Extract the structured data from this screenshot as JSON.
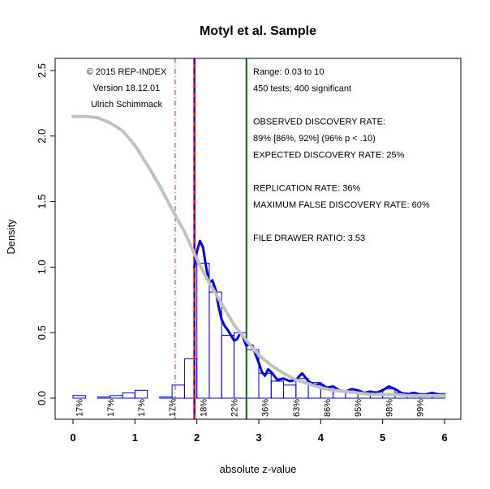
{
  "chart_data": {
    "type": "bar",
    "title": "Motyl et al. Sample",
    "xlabel": "absolute z-value",
    "ylabel": "Density",
    "xlim": [
      0,
      6
    ],
    "ylim": [
      0,
      2.6
    ],
    "x_ticks": [
      "0",
      "1",
      "2",
      "3",
      "4",
      "5",
      "6"
    ],
    "y_ticks": [
      "0.0",
      "0.5",
      "1.0",
      "1.5",
      "2.0",
      "2.5"
    ],
    "grid": false,
    "bin_width": 0.2,
    "histogram": [
      {
        "x0": 0.0,
        "x1": 0.2,
        "density": 0.02
      },
      {
        "x0": 0.2,
        "x1": 0.4,
        "density": 0.0
      },
      {
        "x0": 0.4,
        "x1": 0.6,
        "density": 0.01
      },
      {
        "x0": 0.6,
        "x1": 0.8,
        "density": 0.02
      },
      {
        "x0": 0.8,
        "x1": 1.0,
        "density": 0.04
      },
      {
        "x0": 1.0,
        "x1": 1.2,
        "density": 0.06
      },
      {
        "x0": 1.2,
        "x1": 1.4,
        "density": 0.0
      },
      {
        "x0": 1.4,
        "x1": 1.6,
        "density": 0.01
      },
      {
        "x0": 1.6,
        "x1": 1.8,
        "density": 0.1
      },
      {
        "x0": 1.8,
        "x1": 2.0,
        "density": 0.3
      },
      {
        "x0": 2.0,
        "x1": 2.2,
        "density": 1.03
      },
      {
        "x0": 2.2,
        "x1": 2.4,
        "density": 0.81
      },
      {
        "x0": 2.4,
        "x1": 2.6,
        "density": 0.48
      },
      {
        "x0": 2.6,
        "x1": 2.8,
        "density": 0.5
      },
      {
        "x0": 2.8,
        "x1": 3.0,
        "density": 0.37
      },
      {
        "x0": 3.0,
        "x1": 3.2,
        "density": 0.19
      },
      {
        "x0": 3.2,
        "x1": 3.4,
        "density": 0.13
      },
      {
        "x0": 3.4,
        "x1": 3.6,
        "density": 0.1
      },
      {
        "x0": 3.6,
        "x1": 3.8,
        "density": 0.15
      },
      {
        "x0": 3.8,
        "x1": 4.0,
        "density": 0.12
      },
      {
        "x0": 4.0,
        "x1": 4.2,
        "density": 0.07
      },
      {
        "x0": 4.2,
        "x1": 4.4,
        "density": 0.05
      },
      {
        "x0": 4.4,
        "x1": 4.6,
        "density": 0.04
      },
      {
        "x0": 4.6,
        "x1": 4.8,
        "density": 0.03
      },
      {
        "x0": 4.8,
        "x1": 5.0,
        "density": 0.05
      },
      {
        "x0": 5.0,
        "x1": 5.2,
        "density": 0.07
      },
      {
        "x0": 5.2,
        "x1": 5.4,
        "density": 0.04
      },
      {
        "x0": 5.4,
        "x1": 5.6,
        "density": 0.02
      },
      {
        "x0": 5.6,
        "x1": 5.8,
        "density": 0.02
      },
      {
        "x0": 5.8,
        "x1": 6.0,
        "density": 0.02
      }
    ],
    "series": [
      {
        "kind": "observed-density",
        "color": "#0000ee",
        "x": [
          1.96,
          2.0,
          2.05,
          2.1,
          2.15,
          2.2,
          2.25,
          2.3,
          2.35,
          2.4,
          2.45,
          2.5,
          2.55,
          2.6,
          2.65,
          2.7,
          2.75,
          2.8,
          2.85,
          2.9,
          2.95,
          3.0,
          3.05,
          3.1,
          3.15,
          3.2,
          3.3,
          3.4,
          3.5,
          3.6,
          3.7,
          3.8,
          3.9,
          4.0,
          4.1,
          4.2,
          4.3,
          4.4,
          4.5,
          4.6,
          4.7,
          4.8,
          4.9,
          5.0,
          5.1,
          5.2,
          5.3,
          5.4,
          5.5,
          5.6,
          5.7,
          5.8,
          5.9,
          6.0
        ],
        "y": [
          1.0,
          1.12,
          1.2,
          1.15,
          1.0,
          0.88,
          0.9,
          0.83,
          0.7,
          0.6,
          0.55,
          0.52,
          0.48,
          0.44,
          0.45,
          0.5,
          0.46,
          0.4,
          0.41,
          0.4,
          0.33,
          0.27,
          0.2,
          0.17,
          0.22,
          0.2,
          0.14,
          0.15,
          0.13,
          0.14,
          0.19,
          0.13,
          0.1,
          0.11,
          0.08,
          0.09,
          0.06,
          0.05,
          0.07,
          0.06,
          0.04,
          0.05,
          0.04,
          0.06,
          0.09,
          0.07,
          0.04,
          0.03,
          0.04,
          0.03,
          0.03,
          0.04,
          0.03,
          0.03
        ]
      },
      {
        "kind": "fitted-model",
        "color": "#c0c0c0",
        "x": [
          0.0,
          0.2,
          0.4,
          0.6,
          0.8,
          1.0,
          1.2,
          1.4,
          1.6,
          1.8,
          2.0,
          2.2,
          2.4,
          2.6,
          2.8,
          3.0,
          3.2,
          3.4,
          3.6,
          3.8,
          4.0,
          4.2,
          4.4,
          4.6,
          4.8,
          5.0,
          5.2,
          5.4,
          5.6,
          5.8,
          6.0
        ],
        "y": [
          2.15,
          2.15,
          2.14,
          2.1,
          2.04,
          1.93,
          1.78,
          1.62,
          1.44,
          1.27,
          1.06,
          0.88,
          0.72,
          0.56,
          0.44,
          0.33,
          0.25,
          0.19,
          0.14,
          0.11,
          0.08,
          0.06,
          0.05,
          0.04,
          0.03,
          0.03,
          0.03,
          0.02,
          0.02,
          0.02,
          0.02
        ]
      }
    ],
    "vertical_lines": [
      {
        "x": 1.65,
        "color": "#cc2222",
        "style": "dash-dot"
      },
      {
        "x": 1.96,
        "color": "#ff0000",
        "style": "solid"
      },
      {
        "x": 1.96,
        "color": "#0000ee",
        "style": "dashed"
      },
      {
        "x": 2.8,
        "color": "#006400",
        "style": "solid"
      }
    ],
    "power_labels": [
      {
        "x": 0.1,
        "label": "17%"
      },
      {
        "x": 0.6,
        "label": "17%"
      },
      {
        "x": 1.1,
        "label": "17%"
      },
      {
        "x": 1.6,
        "label": "17%"
      },
      {
        "x": 2.1,
        "label": "18%"
      },
      {
        "x": 2.6,
        "label": "22%"
      },
      {
        "x": 3.1,
        "label": "36%"
      },
      {
        "x": 3.6,
        "label": "63%"
      },
      {
        "x": 4.1,
        "label": "86%"
      },
      {
        "x": 4.6,
        "label": "95%"
      },
      {
        "x": 5.1,
        "label": "98%"
      },
      {
        "x": 5.6,
        "label": "99%"
      }
    ],
    "annotations_left": [
      "© 2015 REP-INDEX",
      "Version 18.12.01",
      "Ulrich Schimmack"
    ],
    "annotations_right": [
      "Range: 0.03 to 10",
      "450 tests; 400 significant",
      "",
      "OBSERVED DISCOVERY RATE:",
      "89%  [86%, 92%]    (96% p < .10)",
      "EXPECTED DISCOVERY RATE: 25%",
      "",
      "REPLICATION RATE: 36%",
      "MAXIMUM FALSE DISCOVERY RATE: 60%",
      "",
      "FILE DRAWER RATIO: 3.53"
    ],
    "colors": {
      "histogram": "#0000ee",
      "observed": "#0000ee",
      "model": "#c0c0c0",
      "significance": "#ff0000",
      "power_line": "#006400"
    }
  }
}
